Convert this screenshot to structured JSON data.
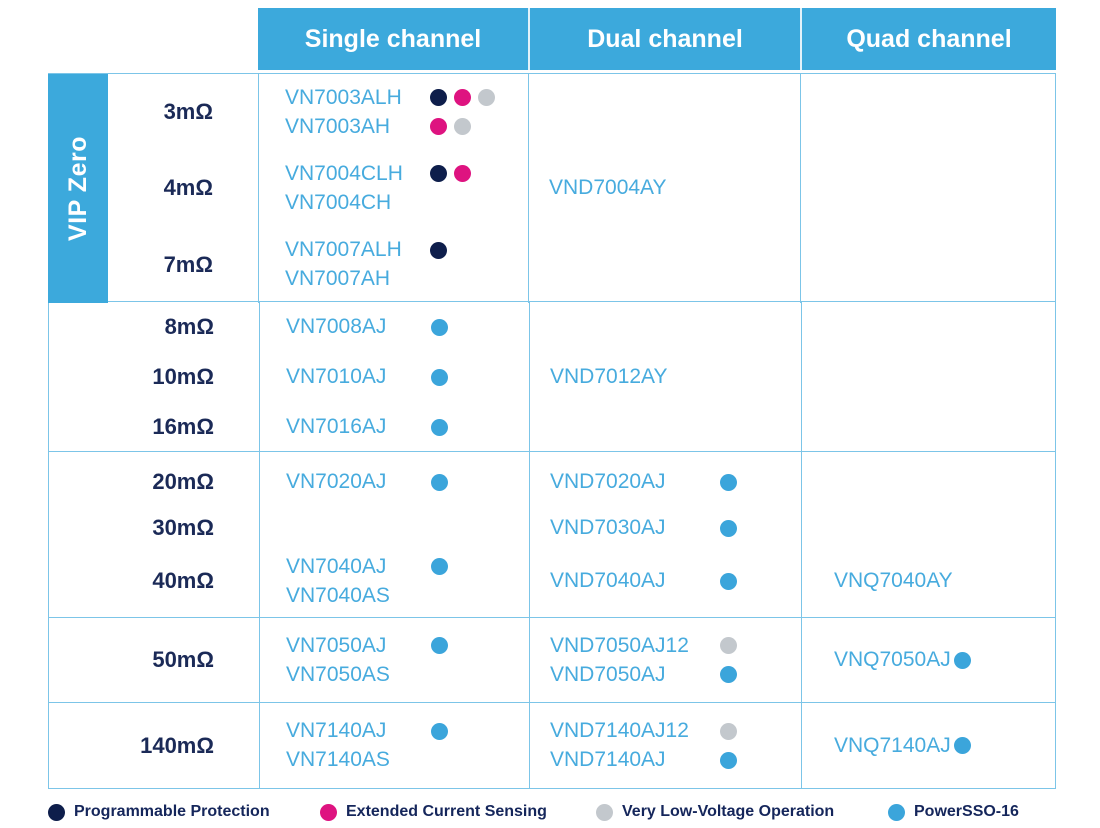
{
  "header": {
    "single": "Single channel",
    "dual": "Dual channel",
    "quad": "Quad channel"
  },
  "side_label": "VIP Zero",
  "dot_colors": {
    "navy": "#0E1E4B",
    "magenta": "#DE1380",
    "gray": "#C3C8CD",
    "blue": "#3BA5DB"
  },
  "colors": {
    "header_blue": "#3CA9DC",
    "product_text_blue": "#47ABDE",
    "label_navy": "#1B2A57",
    "grid_border": "#7CC5E8"
  },
  "sections": {
    "vip_zero": {
      "rows": [
        {
          "res": "3mΩ",
          "single": [
            {
              "name": "VN7003ALH",
              "dots": [
                "navy",
                "magenta",
                "gray"
              ]
            },
            {
              "name": "VN7003AH",
              "dots": [
                "magenta",
                "gray"
              ]
            }
          ]
        },
        {
          "res": "4mΩ",
          "single": [
            {
              "name": "VN7004CLH",
              "dots": [
                "navy",
                "magenta"
              ]
            },
            {
              "name": "VN7004CH",
              "dots": []
            }
          ]
        },
        {
          "res": "7mΩ",
          "single": [
            {
              "name": "VN7007ALH",
              "dots": [
                "navy"
              ]
            },
            {
              "name": "VN7007AH",
              "dots": []
            }
          ]
        }
      ],
      "dual": {
        "name": "VND7004AY",
        "dots": []
      }
    },
    "group2": {
      "rows": [
        {
          "res": "8mΩ",
          "single": {
            "name": "VN7008AJ",
            "dots": [
              "blue"
            ]
          }
        },
        {
          "res": "10mΩ",
          "single": {
            "name": "VN7010AJ",
            "dots": [
              "blue"
            ]
          }
        },
        {
          "res": "16mΩ",
          "single": {
            "name": "VN7016AJ",
            "dots": [
              "blue"
            ]
          }
        }
      ],
      "dual": {
        "name": "VND7012AY",
        "dots": []
      }
    },
    "group3": {
      "rows": [
        {
          "res": "20mΩ",
          "single": {
            "name": "VN7020AJ",
            "dots": [
              "blue"
            ]
          },
          "dual": {
            "name": "VND7020AJ",
            "dots": [
              "blue"
            ]
          }
        },
        {
          "res": "30mΩ",
          "dual": {
            "name": "VND7030AJ",
            "dots": [
              "blue"
            ]
          }
        },
        {
          "res": "40mΩ",
          "single": [
            {
              "name": "VN7040AJ",
              "dots": [
                "blue"
              ]
            },
            {
              "name": "VN7040AS",
              "dots": []
            }
          ],
          "dual": {
            "name": "VND7040AJ",
            "dots": [
              "blue"
            ]
          },
          "quad": {
            "name": "VNQ7040AY",
            "dots": []
          }
        }
      ]
    },
    "group50": {
      "res": "50mΩ",
      "single": [
        {
          "name": "VN7050AJ",
          "dots": [
            "blue"
          ]
        },
        {
          "name": "VN7050AS",
          "dots": []
        }
      ],
      "dual": [
        {
          "name": "VND7050AJ12",
          "dots": [
            "gray"
          ]
        },
        {
          "name": "VND7050AJ",
          "dots": [
            "blue"
          ]
        }
      ],
      "quad": {
        "name": "VNQ7050AJ",
        "dots": [
          "blue"
        ]
      }
    },
    "group140": {
      "res": "140mΩ",
      "single": [
        {
          "name": "VN7140AJ",
          "dots": [
            "blue"
          ]
        },
        {
          "name": "VN7140AS",
          "dots": []
        }
      ],
      "dual": [
        {
          "name": "VND7140AJ12",
          "dots": [
            "gray"
          ]
        },
        {
          "name": "VND7140AJ",
          "dots": [
            "blue"
          ]
        }
      ],
      "quad": {
        "name": "VNQ7140AJ",
        "dots": [
          "blue"
        ]
      }
    }
  },
  "legend": {
    "items": [
      {
        "label": "Programmable Protection",
        "dots": [
          "navy"
        ]
      },
      {
        "label": "Extended Current Sensing",
        "dots": [
          "magenta"
        ]
      },
      {
        "label": "Very Low-Voltage Operation",
        "dots": [
          "gray"
        ]
      },
      {
        "label": "PowerSSO-16",
        "dots": [
          "blue"
        ]
      }
    ]
  }
}
